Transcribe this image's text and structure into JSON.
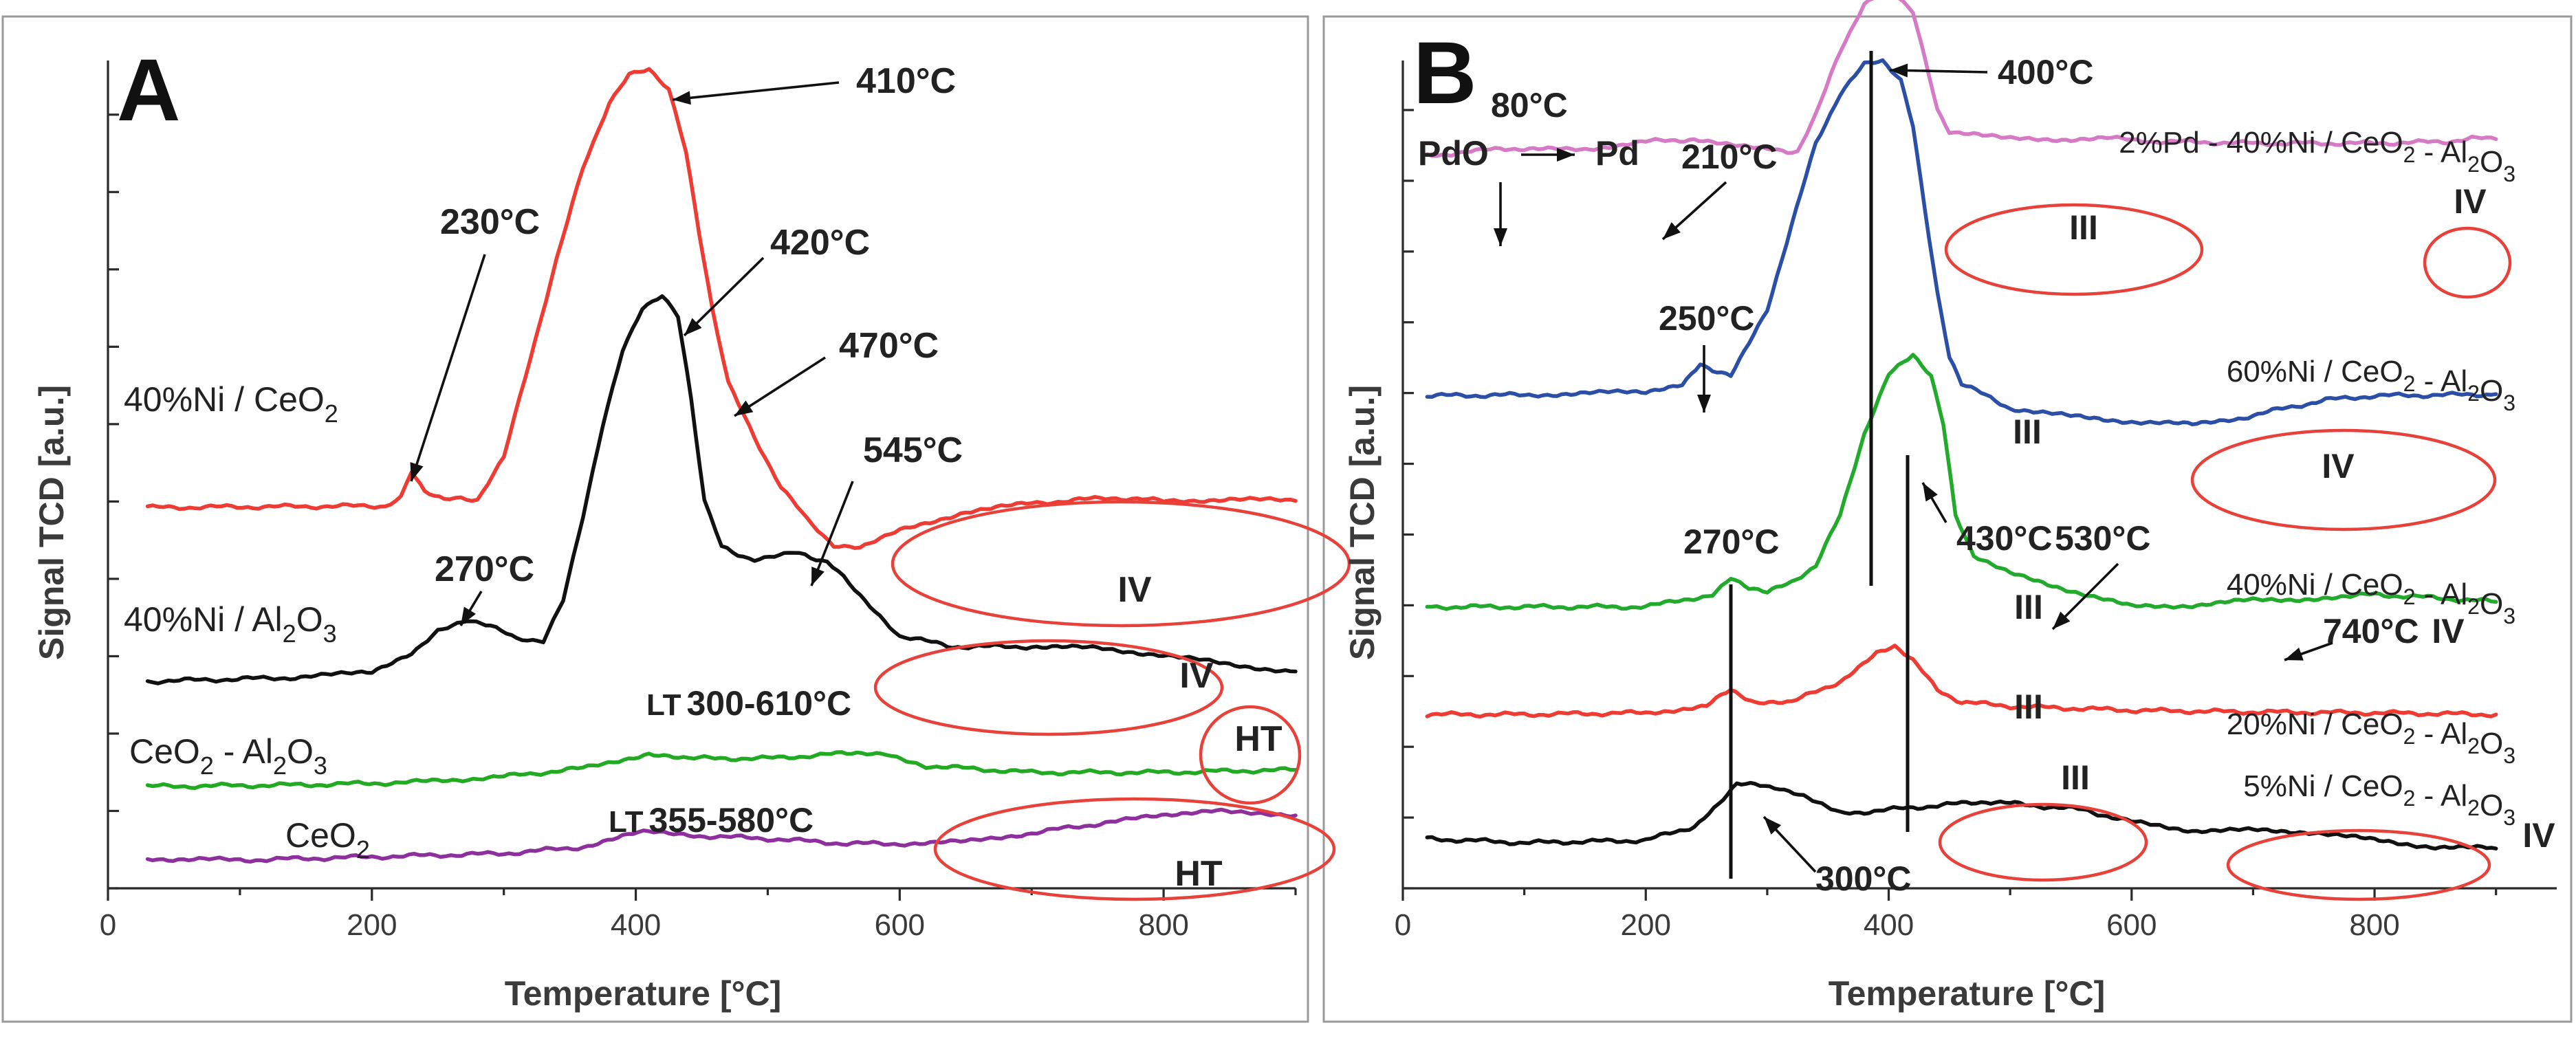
{
  "chart_data": [
    {
      "panel": "A",
      "type": "line",
      "title": "A",
      "xlabel": "Temperature [°C]",
      "ylabel": "Signal TCD [a.u.]",
      "xlim": [
        0,
        900
      ],
      "x_ticks": [
        0,
        200,
        400,
        600,
        800
      ],
      "y_units": "a.u.",
      "series": [
        {
          "name": "40%Ni / CeO2",
          "label_main": "40%Ni / CeO",
          "label_sub": "2",
          "color": "#ee3b33",
          "points": [
            [
              30,
              460
            ],
            [
              210,
              462
            ],
            [
              222,
              472
            ],
            [
              230,
              502
            ],
            [
              240,
              480
            ],
            [
              255,
              470
            ],
            [
              280,
              470
            ],
            [
              300,
              520
            ],
            [
              320,
              640
            ],
            [
              340,
              760
            ],
            [
              360,
              870
            ],
            [
              380,
              950
            ],
            [
              395,
              985
            ],
            [
              410,
              990
            ],
            [
              425,
              965
            ],
            [
              438,
              890
            ],
            [
              448,
              790
            ],
            [
              458,
              700
            ],
            [
              470,
              610
            ],
            [
              490,
              545
            ],
            [
              510,
              485
            ],
            [
              530,
              445
            ],
            [
              550,
              415
            ],
            [
              570,
              410
            ],
            [
              600,
              432
            ],
            [
              650,
              455
            ],
            [
              700,
              465
            ],
            [
              760,
              472
            ],
            [
              800,
              468
            ],
            [
              850,
              470
            ],
            [
              900,
              468
            ]
          ]
        },
        {
          "name": "40%Ni / Al2O3",
          "label_main": "40%Ni / Al",
          "label_sub": "2",
          "label_main2": "O",
          "label_sub2": "3",
          "color": "#111111",
          "points": [
            [
              30,
              250
            ],
            [
              150,
              255
            ],
            [
              200,
              262
            ],
            [
              230,
              285
            ],
            [
              250,
              310
            ],
            [
              272,
              323
            ],
            [
              290,
              318
            ],
            [
              310,
              300
            ],
            [
              330,
              300
            ],
            [
              345,
              350
            ],
            [
              360,
              450
            ],
            [
              375,
              560
            ],
            [
              390,
              650
            ],
            [
              405,
              700
            ],
            [
              420,
              715
            ],
            [
              432,
              690
            ],
            [
              442,
              590
            ],
            [
              452,
              470
            ],
            [
              465,
              412
            ],
            [
              490,
              396
            ],
            [
              520,
              405
            ],
            [
              545,
              395
            ],
            [
              570,
              355
            ],
            [
              600,
              305
            ],
            [
              640,
              292
            ],
            [
              700,
              292
            ],
            [
              750,
              290
            ],
            [
              800,
              282
            ],
            [
              850,
              270
            ],
            [
              900,
              262
            ]
          ]
        },
        {
          "name": "CeO2 - Al2O3",
          "label_main": "CeO",
          "label_sub": "2",
          "label_main2": " - Al",
          "label_sub2": "2",
          "label_main3": "O",
          "label_sub3": "3",
          "color": "#22aa22",
          "points": [
            [
              30,
              123
            ],
            [
              150,
              125
            ],
            [
              230,
              128
            ],
            [
              300,
              135
            ],
            [
              360,
              145
            ],
            [
              410,
              163
            ],
            [
              440,
              157
            ],
            [
              500,
              157
            ],
            [
              560,
              163
            ],
            [
              590,
              163
            ],
            [
              620,
              148
            ],
            [
              700,
              140
            ],
            [
              800,
              140
            ],
            [
              860,
              142
            ],
            [
              900,
              143
            ]
          ]
        },
        {
          "name": "CeO2",
          "label_main": "CeO",
          "label_sub": "2",
          "color": "#8e2f9e",
          "points": [
            [
              30,
              36
            ],
            [
              100,
              34
            ],
            [
              200,
              38
            ],
            [
              300,
              42
            ],
            [
              360,
              50
            ],
            [
              390,
              64
            ],
            [
              410,
              68
            ],
            [
              440,
              64
            ],
            [
              500,
              60
            ],
            [
              560,
              54
            ],
            [
              600,
              54
            ],
            [
              650,
              56
            ],
            [
              700,
              67
            ],
            [
              760,
              80
            ],
            [
              810,
              90
            ],
            [
              840,
              96
            ],
            [
              870,
              92
            ],
            [
              900,
              88
            ]
          ]
        }
      ],
      "annotations": [
        "410°C",
        "230°C",
        "420°C",
        "470°C",
        "545°C",
        "270°C",
        "IV",
        "IV",
        "HT",
        "HT"
      ],
      "lt_labels": [
        {
          "lt": "LT",
          "range": "300-610°C"
        },
        {
          "lt": "LT",
          "range": "355-580°C"
        }
      ]
    },
    {
      "panel": "B",
      "type": "line",
      "title": "B",
      "xlabel": "Temperature [°C]",
      "ylabel": "Signal TCD [a.u.]",
      "xlim": [
        0,
        950
      ],
      "x_ticks": [
        0,
        200,
        400,
        600,
        800
      ],
      "y_units": "a.u.",
      "series": [
        {
          "name": "2%Pd - 40%Ni / CeO2 - Al2O3",
          "label_parts": [
            [
              "2%Pd - 40%Ni / CeO",
              "2"
            ],
            [
              " - Al",
              "2"
            ],
            [
              "O",
              "3"
            ]
          ],
          "color": "#d67ac6",
          "points": [
            [
              20,
              885
            ],
            [
              60,
              890
            ],
            [
              80,
              895
            ],
            [
              100,
              892
            ],
            [
              150,
              893
            ],
            [
              200,
              902
            ],
            [
              240,
              905
            ],
            [
              270,
              898
            ],
            [
              300,
              892
            ],
            [
              325,
              890
            ],
            [
              340,
              935
            ],
            [
              360,
              1010
            ],
            [
              380,
              1070
            ],
            [
              400,
              1085
            ],
            [
              420,
              1060
            ],
            [
              430,
              1000
            ],
            [
              440,
              940
            ],
            [
              450,
              915
            ],
            [
              470,
              910
            ],
            [
              500,
              905
            ],
            [
              550,
              905
            ],
            [
              580,
              908
            ],
            [
              600,
              903
            ],
            [
              700,
              900
            ],
            [
              800,
              900
            ],
            [
              860,
              902
            ],
            [
              880,
              906
            ],
            [
              900,
              905
            ]
          ]
        },
        {
          "name": "60%Ni / CeO2 - Al2O3",
          "label_parts": [
            [
              "60%Ni / CeO",
              "2"
            ],
            [
              " - Al",
              "2"
            ],
            [
              "O",
              "3"
            ]
          ],
          "color": "#2b4ea6",
          "points": [
            [
              20,
              595
            ],
            [
              100,
              596
            ],
            [
              150,
              598
            ],
            [
              200,
              600
            ],
            [
              230,
              610
            ],
            [
              245,
              635
            ],
            [
              255,
              625
            ],
            [
              270,
              620
            ],
            [
              300,
              700
            ],
            [
              320,
              800
            ],
            [
              340,
              900
            ],
            [
              360,
              960
            ],
            [
              380,
              995
            ],
            [
              395,
              998
            ],
            [
              410,
              975
            ],
            [
              420,
              920
            ],
            [
              430,
              820
            ],
            [
              440,
              720
            ],
            [
              450,
              640
            ],
            [
              460,
              610
            ],
            [
              500,
              580
            ],
            [
              550,
              570
            ],
            [
              600,
              564
            ],
            [
              650,
              560
            ],
            [
              680,
              565
            ],
            [
              720,
              578
            ],
            [
              760,
              590
            ],
            [
              800,
              595
            ],
            [
              860,
              596
            ],
            [
              900,
              597
            ]
          ]
        },
        {
          "name": "40%Ni / CeO2 - Al2O3",
          "label_parts": [
            [
              "40%Ni / CeO",
              "2"
            ],
            [
              " - Al",
              "2"
            ],
            [
              "O",
              "3"
            ]
          ],
          "color": "#22aa2c",
          "points": [
            [
              20,
              340
            ],
            [
              100,
              340
            ],
            [
              200,
              340
            ],
            [
              255,
              355
            ],
            [
              270,
              375
            ],
            [
              285,
              362
            ],
            [
              300,
              357
            ],
            [
              320,
              370
            ],
            [
              340,
              390
            ],
            [
              360,
              450
            ],
            [
              380,
              550
            ],
            [
              400,
              620
            ],
            [
              420,
              645
            ],
            [
              435,
              620
            ],
            [
              445,
              560
            ],
            [
              455,
              450
            ],
            [
              470,
              400
            ],
            [
              500,
              380
            ],
            [
              550,
              360
            ],
            [
              600,
              340
            ],
            [
              650,
              342
            ],
            [
              700,
              348
            ],
            [
              750,
              350
            ],
            [
              780,
              353
            ],
            [
              800,
              355
            ],
            [
              860,
              350
            ],
            [
              900,
              346
            ]
          ]
        },
        {
          "name": "20%Ni / CeO2 - Al2O3",
          "label_parts": [
            [
              "20%Ni / CeO",
              "2"
            ],
            [
              " - Al",
              "2"
            ],
            [
              "O",
              "3"
            ]
          ],
          "color": "#ee3b33",
          "points": [
            [
              20,
              210
            ],
            [
              100,
              210
            ],
            [
              200,
              212
            ],
            [
              250,
              220
            ],
            [
              270,
              240
            ],
            [
              290,
              225
            ],
            [
              320,
              225
            ],
            [
              360,
              250
            ],
            [
              390,
              285
            ],
            [
              405,
              292
            ],
            [
              420,
              275
            ],
            [
              440,
              240
            ],
            [
              460,
              225
            ],
            [
              500,
              220
            ],
            [
              600,
              215
            ],
            [
              700,
              213
            ],
            [
              800,
              212
            ],
            [
              900,
              210
            ]
          ]
        },
        {
          "name": "5%Ni / CeO2 - Al2O3",
          "label_parts": [
            [
              "5%Ni / CeO",
              "2"
            ],
            [
              " - Al",
              "2"
            ],
            [
              "O",
              "3"
            ]
          ],
          "color": "#111111",
          "points": [
            [
              20,
              60
            ],
            [
              100,
              55
            ],
            [
              200,
              58
            ],
            [
              240,
              75
            ],
            [
              260,
              100
            ],
            [
              275,
              125
            ],
            [
              290,
              125
            ],
            [
              310,
              122
            ],
            [
              330,
              110
            ],
            [
              360,
              90
            ],
            [
              400,
              95
            ],
            [
              440,
              100
            ],
            [
              480,
              105
            ],
            [
              520,
              100
            ],
            [
              560,
              95
            ],
            [
              600,
              80
            ],
            [
              650,
              70
            ],
            [
              700,
              70
            ],
            [
              750,
              68
            ],
            [
              800,
              58
            ],
            [
              850,
              50
            ],
            [
              900,
              48
            ]
          ]
        }
      ],
      "annotations": [
        "400°C",
        "80°C",
        "PdO",
        "Pd",
        "210°C",
        "250°C",
        "III",
        "IV",
        "III",
        "IV",
        "430°C",
        "530°C",
        "270°C",
        "III",
        "740°C",
        "IV",
        "III",
        "III",
        "IV",
        "300°C"
      ]
    }
  ]
}
